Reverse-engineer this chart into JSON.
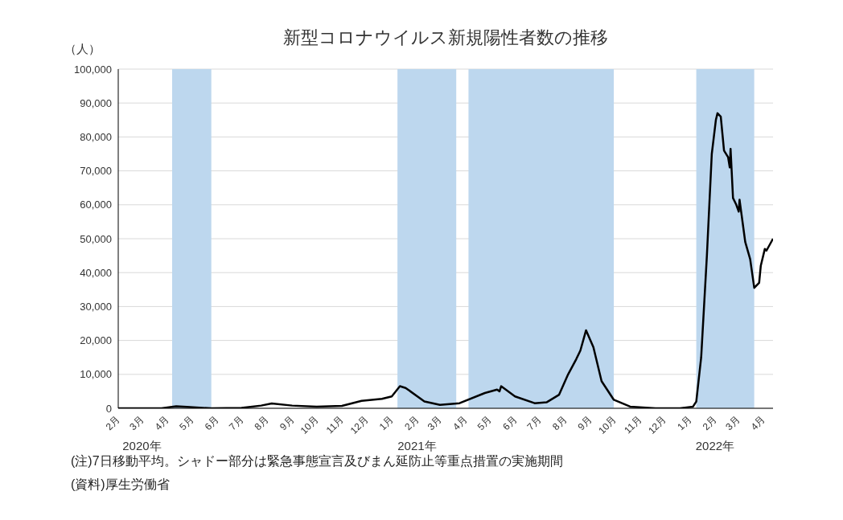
{
  "chart_data": {
    "type": "line",
    "title": "新型コロナウイルス新規陽性者数の推移",
    "ylabel": "（人）",
    "x": [
      "2020-02-01",
      "2020-03-01",
      "2020-03-25",
      "2020-04-12",
      "2020-04-25",
      "2020-05-25",
      "2020-07-01",
      "2020-07-25",
      "2020-08-07",
      "2020-09-01",
      "2020-10-01",
      "2020-11-01",
      "2020-11-25",
      "2020-12-20",
      "2021-01-01",
      "2021-01-11",
      "2021-01-18",
      "2021-02-10",
      "2021-03-01",
      "2021-03-25",
      "2021-04-25",
      "2021-05-10",
      "2021-05-13",
      "2021-05-15",
      "2021-06-01",
      "2021-06-25",
      "2021-07-10",
      "2021-07-25",
      "2021-08-05",
      "2021-08-15",
      "2021-08-20",
      "2021-08-27",
      "2021-09-05",
      "2021-09-15",
      "2021-09-30",
      "2021-10-20",
      "2021-11-20",
      "2021-12-20",
      "2022-01-05",
      "2022-01-09",
      "2022-01-15",
      "2022-01-22",
      "2022-01-28",
      "2022-02-02",
      "2022-02-04",
      "2022-02-08",
      "2022-02-12",
      "2022-02-17",
      "2022-02-19",
      "2022-02-20",
      "2022-02-23",
      "2022-02-27",
      "2022-03-02",
      "2022-03-03",
      "2022-03-10",
      "2022-03-16",
      "2022-03-21",
      "2022-03-27",
      "2022-03-29",
      "2022-04-03",
      "2022-04-05",
      "2022-04-13"
    ],
    "series": [
      {
        "color": "#000000",
        "values": [
          0,
          0,
          0,
          600,
          400,
          0,
          100,
          800,
          1400,
          800,
          500,
          700,
          2200,
          2800,
          3500,
          6500,
          6000,
          2000,
          1000,
          1500,
          4500,
          5500,
          5000,
          6500,
          3500,
          1500,
          1800,
          4000,
          10000,
          14500,
          17000,
          23000,
          18000,
          8000,
          2500,
          500,
          0,
          0,
          500,
          2000,
          15000,
          45000,
          75000,
          85000,
          87000,
          86000,
          76000,
          74000,
          71000,
          76500,
          62000,
          60000,
          58000,
          61500,
          49000,
          44000,
          35500,
          37000,
          42000,
          47000,
          46500,
          50000
        ]
      }
    ],
    "xlim": [
      "2020-02-01",
      "2022-04-13"
    ],
    "xticks": [
      {
        "value": "2020-02",
        "label": "2月"
      },
      {
        "value": "2020-03",
        "label": "3月"
      },
      {
        "value": "2020-04",
        "label": "4月"
      },
      {
        "value": "2020-05",
        "label": "5月"
      },
      {
        "value": "2020-06",
        "label": "6月"
      },
      {
        "value": "2020-07",
        "label": "7月"
      },
      {
        "value": "2020-08",
        "label": "8月"
      },
      {
        "value": "2020-09",
        "label": "9月"
      },
      {
        "value": "2020-10",
        "label": "10月"
      },
      {
        "value": "2020-11",
        "label": "11月"
      },
      {
        "value": "2020-12",
        "label": "12月"
      },
      {
        "value": "2021-01",
        "label": "1月"
      },
      {
        "value": "2021-02",
        "label": "2月"
      },
      {
        "value": "2021-03",
        "label": "3月"
      },
      {
        "value": "2021-04",
        "label": "4月"
      },
      {
        "value": "2021-05",
        "label": "5月"
      },
      {
        "value": "2021-06",
        "label": "6月"
      },
      {
        "value": "2021-07",
        "label": "7月"
      },
      {
        "value": "2021-08",
        "label": "8月"
      },
      {
        "value": "2021-09",
        "label": "9月"
      },
      {
        "value": "2021-10",
        "label": "10月"
      },
      {
        "value": "2021-11",
        "label": "11月"
      },
      {
        "value": "2021-12",
        "label": "12月"
      },
      {
        "value": "2022-01",
        "label": "1月"
      },
      {
        "value": "2022-02",
        "label": "2月"
      },
      {
        "value": "2022-03",
        "label": "3月"
      },
      {
        "value": "2022-04",
        "label": "4月"
      }
    ],
    "ylim": [
      0,
      100000
    ],
    "yticks": [
      {
        "value": 0,
        "label": "0"
      },
      {
        "value": 10000,
        "label": "10,000"
      },
      {
        "value": 20000,
        "label": "20,000"
      },
      {
        "value": 30000,
        "label": "30,000"
      },
      {
        "value": 40000,
        "label": "40,000"
      },
      {
        "value": 50000,
        "label": "50,000"
      },
      {
        "value": 60000,
        "label": "60,000"
      },
      {
        "value": 70000,
        "label": "70,000"
      },
      {
        "value": 80000,
        "label": "80,000"
      },
      {
        "value": 90000,
        "label": "90,000"
      },
      {
        "value": 100000,
        "label": "100,000"
      }
    ],
    "bands": [
      {
        "axis": "x",
        "from": "2020-04-07",
        "to": "2020-05-25",
        "color": "#bdd7ee"
      },
      {
        "axis": "x",
        "from": "2021-01-08",
        "to": "2021-03-21",
        "color": "#bdd7ee"
      },
      {
        "axis": "x",
        "from": "2021-04-05",
        "to": "2021-09-30",
        "color": "#bdd7ee"
      },
      {
        "axis": "x",
        "from": "2022-01-09",
        "to": "2022-03-21",
        "color": "#bdd7ee"
      }
    ],
    "grid": "y",
    "legend": false,
    "marker": "none",
    "line_style": "solid",
    "annotations": [
      "2020年",
      "2021年",
      "2022年",
      "(注)7日移動平均。シャドー部分は緊急事態宣言及びまん延防止等重点措置の実施期間",
      "(資料)厚生労働省"
    ]
  }
}
